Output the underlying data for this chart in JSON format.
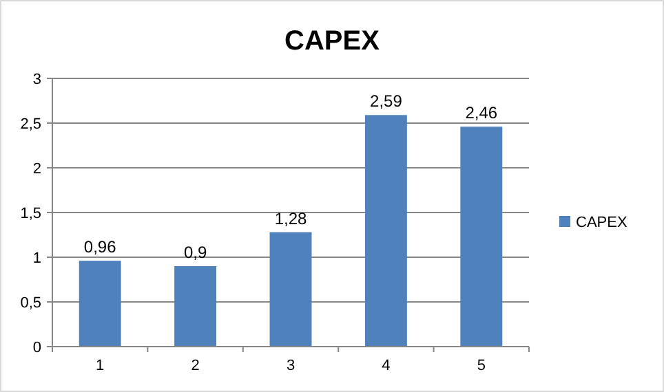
{
  "chart_data": {
    "type": "bar",
    "title": "CAPEX",
    "categories": [
      "1",
      "2",
      "3",
      "4",
      "5"
    ],
    "series": [
      {
        "name": "CAPEX",
        "color": "#4f81bd",
        "values": [
          0.96,
          0.9,
          1.28,
          2.59,
          2.46
        ],
        "value_labels": [
          "0,96",
          "0,9",
          "1,28",
          "2,59",
          "2,46"
        ]
      }
    ],
    "ylim": [
      0,
      3
    ],
    "yticks": [
      0,
      {
        "value": 0.5,
        "label": "0,5"
      },
      1,
      {
        "value": 1.5,
        "label": "1,5"
      },
      2,
      {
        "value": 2.5,
        "label": "2,5"
      },
      3
    ],
    "grid": "y",
    "legend": "right"
  }
}
